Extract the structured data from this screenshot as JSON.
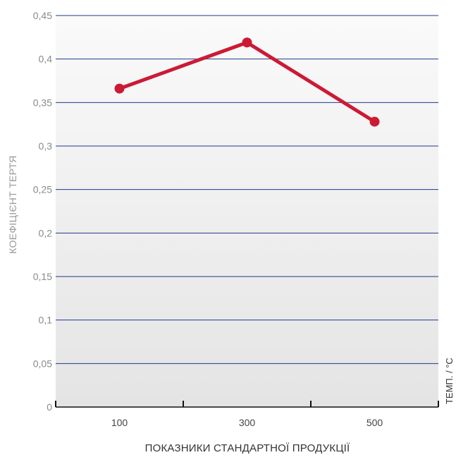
{
  "chart_data": {
    "type": "line",
    "title": "",
    "xlabel": "ПОКАЗНИКИ СТАНДАРТНОЇ ПРОДУКЦІЇ",
    "ylabel": "КОЕФІЦІЄНТ ТЕРТЯ",
    "x_unit_label": "ТЕМП. / °C",
    "categories": [
      "100",
      "300",
      "500"
    ],
    "x": [
      100,
      300,
      500
    ],
    "xlim": [
      0,
      600
    ],
    "x_minor_ticks": [
      0,
      200,
      400,
      600
    ],
    "ylim": [
      0,
      0.45
    ],
    "yticks": [
      {
        "value": 0,
        "label": "0"
      },
      {
        "value": 0.05,
        "label": "0,05"
      },
      {
        "value": 0.1,
        "label": "0,1"
      },
      {
        "value": 0.15,
        "label": "0,15"
      },
      {
        "value": 0.2,
        "label": "0,2"
      },
      {
        "value": 0.25,
        "label": "0,25"
      },
      {
        "value": 0.3,
        "label": "0,3"
      },
      {
        "value": 0.35,
        "label": "0,35"
      },
      {
        "value": 0.4,
        "label": "0,4"
      },
      {
        "value": 0.45,
        "label": "0,45"
      }
    ],
    "grid": true,
    "series": [
      {
        "values": [
          0.366,
          0.419,
          0.328
        ],
        "color": "#cc1a35"
      }
    ],
    "colors": {
      "line": "#cc1a35",
      "grid": "#1f3a8a",
      "axis": "#111111",
      "background_top": "#fafafa",
      "background_bottom": "#e4e4e4"
    }
  }
}
